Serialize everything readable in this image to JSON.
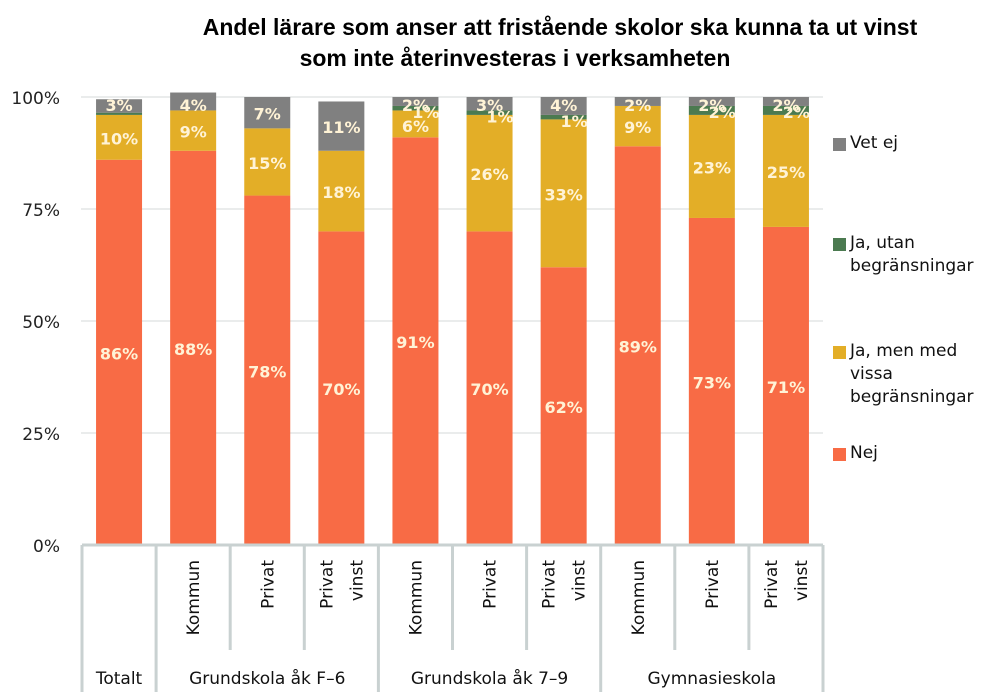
{
  "chart_data": {
    "type": "bar",
    "stacked": true,
    "title": "Andel lärare som anser att fristående skolor ska kunna ta ut vinst som inte återinvesteras i verksamheten",
    "title_lines": [
      "Andel lärare som anser att fristående skolor ska kunna ta ut vinst",
      "som inte återinvesteras i verksamheten"
    ],
    "xlabel": "",
    "ylabel": "",
    "ylim": [
      0,
      100
    ],
    "y_ticks": [
      "0%",
      "25%",
      "50%",
      "75%",
      "100%"
    ],
    "y_tick_values": [
      0,
      25,
      50,
      75,
      100
    ],
    "grid": true,
    "legend_position": "right",
    "categories": [
      "Totalt",
      "Kommun",
      "Privat",
      "Privat vinst",
      "Kommun",
      "Privat",
      "Privat vinst",
      "Kommun",
      "Privat",
      "Privat vinst"
    ],
    "category_label_lines": [
      [],
      [
        "Kommun"
      ],
      [
        "Privat"
      ],
      [
        "Privat",
        "vinst"
      ],
      [
        "Kommun"
      ],
      [
        "Privat"
      ],
      [
        "Privat",
        "vinst"
      ],
      [
        "Kommun"
      ],
      [
        "Privat"
      ],
      [
        "Privat",
        "vinst"
      ]
    ],
    "groups": [
      {
        "label": "Totalt",
        "members": [
          0
        ]
      },
      {
        "label": "Grundskola åk F–6",
        "members": [
          1,
          2,
          3
        ]
      },
      {
        "label": "Grundskola åk 7–9",
        "members": [
          4,
          5,
          6
        ]
      },
      {
        "label": "Gymnasieskola",
        "members": [
          7,
          8,
          9
        ]
      }
    ],
    "series": [
      {
        "name": "Nej",
        "color": "#F86B45",
        "values": [
          86,
          88,
          78,
          70,
          91,
          70,
          62,
          89,
          73,
          71
        ],
        "labels": [
          "86%",
          "88%",
          "78%",
          "70%",
          "91%",
          "70%",
          "62%",
          "89%",
          "73%",
          "71%"
        ]
      },
      {
        "name": "Ja, men med vissa begränsningar",
        "color": "#E3AE27",
        "values": [
          10,
          9,
          15,
          18,
          6,
          26,
          33,
          9,
          23,
          25
        ],
        "labels": [
          "10%",
          "9%",
          "15%",
          "18%",
          "6%",
          "26%",
          "33%",
          "9%",
          "23%",
          "25%"
        ]
      },
      {
        "name": "Ja, utan begränsningar",
        "color": "#4B7A50",
        "values": [
          0.5,
          0,
          0,
          0,
          1,
          1,
          1,
          0,
          2,
          2
        ],
        "labels": [
          "",
          "",
          "",
          "",
          "1%",
          "1%",
          "1%",
          "",
          "2%",
          "2%"
        ]
      },
      {
        "name": "Vet ej",
        "color": "#808080",
        "values": [
          3,
          4,
          7,
          11,
          2,
          3,
          4,
          2,
          2,
          2
        ],
        "labels": [
          "3%",
          "4%",
          "7%",
          "11%",
          "2%",
          "3%",
          "4%",
          "2%",
          "2%",
          "2%"
        ]
      }
    ],
    "legend_order": [
      "Vet ej",
      "Ja, utan begränsningar",
      "Ja, men med vissa begränsningar",
      "Nej"
    ],
    "legend_lines": [
      [
        "Vet ej"
      ],
      [
        "Ja, utan",
        "begränsningar"
      ],
      [
        "Ja, men med",
        "vissa",
        "begränsningar"
      ],
      [
        "Nej"
      ]
    ],
    "data_label_color": "#FFF3D6"
  }
}
